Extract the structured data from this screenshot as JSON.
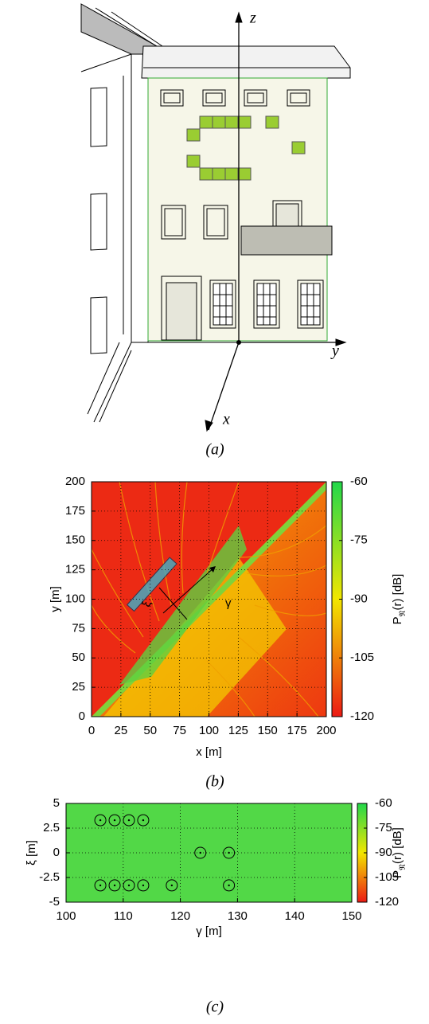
{
  "diagram": {
    "axis_labels": [
      "z",
      "y",
      "x"
    ],
    "caption": "(a)"
  },
  "chart_data": [
    {
      "type": "heatmap",
      "xlabel": "x [m]",
      "ylabel": "y [m]",
      "xlim": [
        0,
        200
      ],
      "ylim": [
        0,
        200
      ],
      "xticks": [
        0,
        25,
        50,
        75,
        100,
        125,
        150,
        175,
        200
      ],
      "yticks": [
        0,
        25,
        50,
        75,
        100,
        125,
        150,
        175,
        200
      ],
      "grid": true,
      "colorbar": {
        "label_main": "P",
        "label_sub": "𝔑",
        "label_rest": "(r) [dB]",
        "lim": [
          -120,
          -60
        ],
        "ticks": [
          -60,
          -75,
          -90,
          -105,
          -120
        ],
        "colors": [
          "#ec1a14",
          "#f2e600",
          "#22d84a"
        ]
      },
      "annotations": [
        "γ",
        "ξ"
      ],
      "caption": "(b)"
    },
    {
      "type": "scatter",
      "xlabel": "γ [m]",
      "ylabel": "ξ [m]",
      "xlim": [
        100,
        150
      ],
      "ylim": [
        -5,
        5
      ],
      "xticks": [
        100,
        110,
        120,
        130,
        140,
        150
      ],
      "yticks": [
        5,
        2.5,
        0,
        -2.5,
        -5
      ],
      "grid": true,
      "background": "#52d847",
      "color": "#000",
      "x": [
        106,
        108.5,
        111,
        113.5,
        123.5,
        128.5,
        106,
        108.5,
        111,
        113.5,
        118.5,
        128.5
      ],
      "values": [
        3.3,
        3.3,
        3.3,
        3.3,
        0,
        0,
        -3.3,
        -3.3,
        -3.3,
        -3.3,
        -3.3,
        -3.3
      ],
      "colorbar": {
        "label_main": "P",
        "label_sub": "𝔑",
        "label_rest": "(r) [dB]",
        "lim": [
          -120,
          -60
        ],
        "ticks": [
          -60,
          -75,
          -90,
          -105,
          -120
        ],
        "colors": [
          "#ec1a14",
          "#f2e600",
          "#22d84a"
        ]
      },
      "caption": "(c)"
    }
  ]
}
